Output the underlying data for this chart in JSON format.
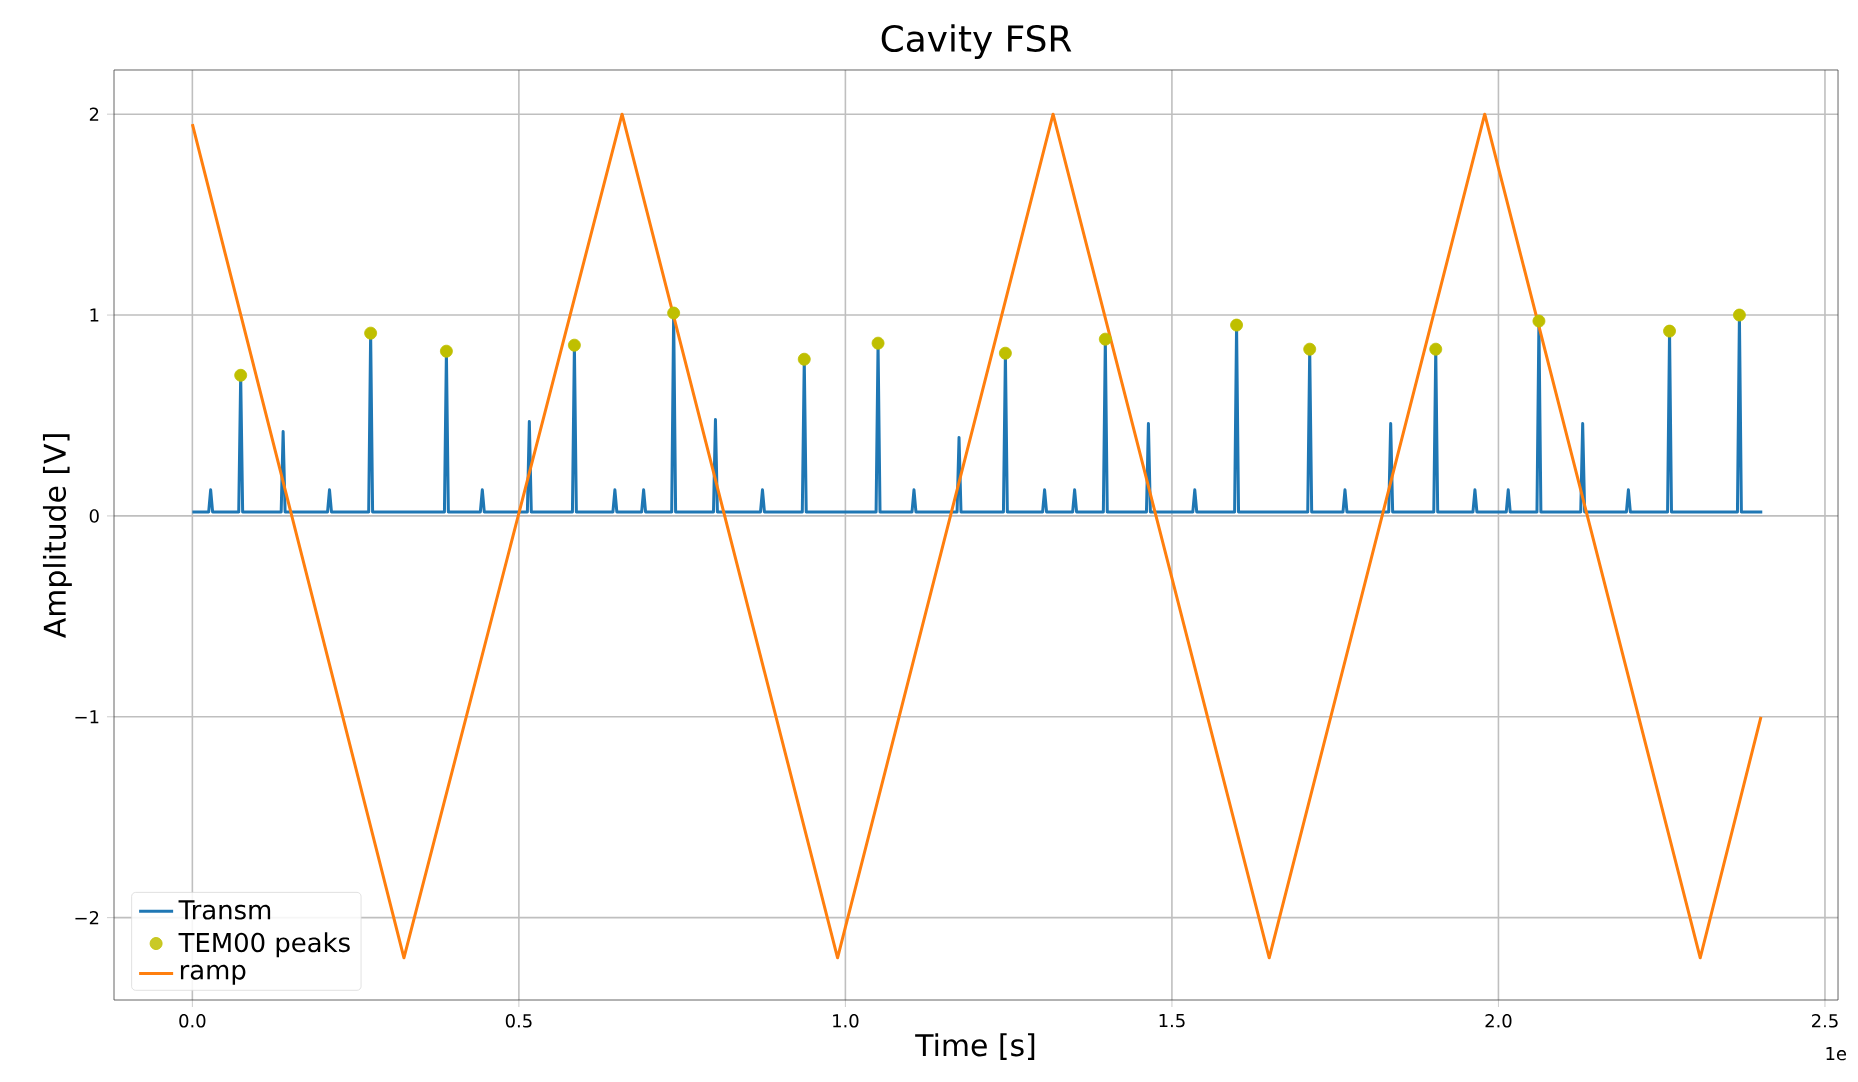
{
  "chart_data": {
    "type": "line",
    "title": "Cavity FSR",
    "xlabel": "Time [s]",
    "ylabel": "Amplitude [V]",
    "xlim": [
      -0.12,
      2.52
    ],
    "ylim": [
      -2.41,
      2.22
    ],
    "xticks": [
      {
        "value": 0,
        "label": "0.0"
      },
      {
        "value": 0.5,
        "label": "0.5"
      },
      {
        "value": 1,
        "label": "1.0"
      },
      {
        "value": 1.5,
        "label": "1.5"
      },
      {
        "value": 2,
        "label": "2.0"
      },
      {
        "value": 2.5,
        "label": "2.5"
      }
    ],
    "yticks": [
      {
        "value": -2,
        "label": "−2"
      },
      {
        "value": -1,
        "label": "−1"
      },
      0,
      1,
      2
    ],
    "grid": true,
    "legend": "bottom left",
    "annotations": [
      "1e"
    ],
    "series": [
      {
        "name": "Transm",
        "color": "#1f77b4",
        "marker": "none",
        "x": [
          0,
          0.025,
          0.028,
          0.031,
          0.071,
          0.074,
          0.077,
          0.136,
          0.139,
          0.142,
          0.207,
          0.21,
          0.213,
          0.27,
          0.273,
          0.276,
          0.386,
          0.389,
          0.392,
          0.441,
          0.444,
          0.447,
          0.513,
          0.516,
          0.519,
          0.582,
          0.585,
          0.588,
          0.644,
          0.647,
          0.65,
          0.688,
          0.691,
          0.694,
          0.734,
          0.737,
          0.74,
          0.798,
          0.801,
          0.804,
          0.87,
          0.873,
          0.876,
          0.934,
          0.937,
          0.94,
          1.047,
          1.05,
          1.053,
          1.102,
          1.105,
          1.108,
          1.171,
          1.174,
          1.177,
          1.242,
          1.245,
          1.248,
          1.302,
          1.305,
          1.308,
          1.348,
          1.351,
          1.354,
          1.395,
          1.398,
          1.401,
          1.461,
          1.464,
          1.467,
          1.532,
          1.535,
          1.538,
          1.596,
          1.599,
          1.602,
          1.708,
          1.711,
          1.714,
          1.762,
          1.765,
          1.768,
          1.832,
          1.835,
          1.838,
          1.901,
          1.904,
          1.907,
          1.961,
          1.964,
          1.967,
          2.012,
          2.015,
          2.018,
          2.059,
          2.062,
          2.065,
          2.126,
          2.129,
          2.132,
          2.196,
          2.199,
          2.202,
          2.259,
          2.262,
          2.265,
          2.366,
          2.369,
          2.372,
          2.404
        ],
        "values": [
          0.02,
          0.02,
          0.13,
          0.02,
          0.02,
          0.7,
          0.02,
          0.02,
          0.42,
          0.02,
          0.02,
          0.13,
          0.02,
          0.02,
          0.91,
          0.02,
          0.02,
          0.82,
          0.02,
          0.02,
          0.13,
          0.02,
          0.02,
          0.47,
          0.02,
          0.02,
          0.85,
          0.02,
          0.02,
          0.13,
          0.02,
          0.02,
          0.13,
          0.02,
          0.02,
          1.01,
          0.02,
          0.02,
          0.48,
          0.02,
          0.02,
          0.13,
          0.02,
          0.02,
          0.78,
          0.02,
          0.02,
          0.86,
          0.02,
          0.02,
          0.13,
          0.02,
          0.02,
          0.39,
          0.02,
          0.02,
          0.81,
          0.02,
          0.02,
          0.13,
          0.02,
          0.02,
          0.13,
          0.02,
          0.02,
          0.88,
          0.02,
          0.02,
          0.46,
          0.02,
          0.02,
          0.13,
          0.02,
          0.02,
          0.95,
          0.02,
          0.02,
          0.83,
          0.02,
          0.02,
          0.13,
          0.02,
          0.02,
          0.46,
          0.02,
          0.02,
          0.83,
          0.02,
          0.02,
          0.13,
          0.02,
          0.02,
          0.13,
          0.02,
          0.02,
          0.97,
          0.02,
          0.02,
          0.46,
          0.02,
          0.02,
          0.13,
          0.02,
          0.02,
          0.92,
          0.02,
          0.02,
          1.0,
          0.02,
          0.02
        ]
      },
      {
        "name": "TEM00 peaks",
        "type": "scatter",
        "color": "#bfbf00",
        "marker": "circle",
        "x": [
          0.074,
          0.273,
          0.389,
          0.585,
          0.737,
          0.937,
          1.05,
          1.245,
          1.398,
          1.599,
          1.711,
          1.904,
          2.062,
          2.262,
          2.369
        ],
        "values": [
          0.7,
          0.91,
          0.82,
          0.85,
          1.01,
          0.78,
          0.86,
          0.81,
          0.88,
          0.95,
          0.83,
          0.83,
          0.97,
          0.92,
          1.0
        ]
      },
      {
        "name": "ramp",
        "color": "#ff7f0e",
        "marker": "none",
        "x": [
          0,
          0.324,
          0.658,
          0.988,
          1.318,
          1.649,
          1.979,
          2.309,
          2.402
        ],
        "values": [
          1.95,
          -2.2,
          2,
          -2.2,
          2,
          -2.2,
          2,
          -2.2,
          -1.0
        ]
      }
    ]
  }
}
